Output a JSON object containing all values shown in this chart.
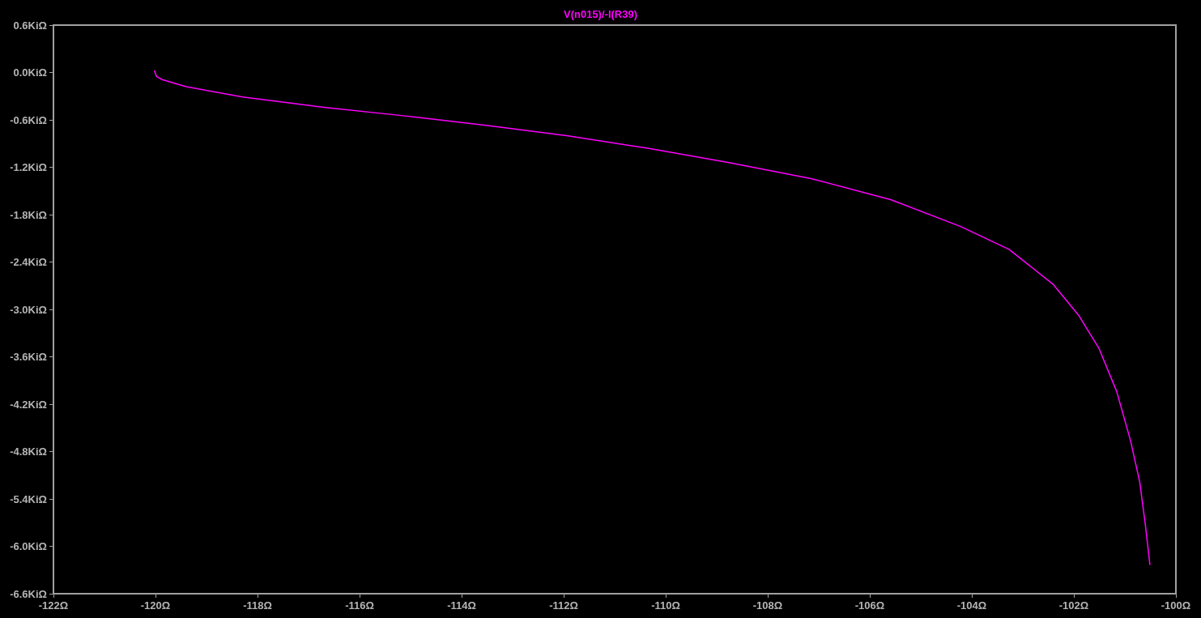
{
  "chart_data": {
    "type": "line",
    "title": "V(n015)/-I(R39)",
    "x": [
      -120.02,
      -119.98,
      -119.87,
      -119.4,
      -118.29,
      -116.7,
      -115.11,
      -113.52,
      -111.94,
      -110.35,
      -108.76,
      -107.17,
      -105.59,
      -104.22,
      -103.27,
      -102.41,
      -101.9,
      -101.51,
      -101.16,
      -100.89,
      -100.71,
      -100.6,
      -100.51
    ],
    "series": [
      {
        "color": "#ff00ff",
        "values": [
          0.02,
          -0.05,
          -0.09,
          -0.18,
          -0.31,
          -0.44,
          -0.55,
          -0.67,
          -0.8,
          -0.96,
          -1.14,
          -1.34,
          -1.61,
          -1.95,
          -2.24,
          -2.68,
          -3.08,
          -3.49,
          -4.04,
          -4.66,
          -5.18,
          -5.72,
          -6.23
        ]
      }
    ],
    "xlim": [
      -122,
      -100
    ],
    "xticks": [
      {
        "value": -122,
        "label": "-122Ω"
      },
      {
        "value": -120,
        "label": "-120Ω"
      },
      {
        "value": -118,
        "label": "-118Ω"
      },
      {
        "value": -116,
        "label": "-116Ω"
      },
      {
        "value": -114,
        "label": "-114Ω"
      },
      {
        "value": -112,
        "label": "-112Ω"
      },
      {
        "value": -110,
        "label": "-110Ω"
      },
      {
        "value": -108,
        "label": "-108Ω"
      },
      {
        "value": -106,
        "label": "-106Ω"
      },
      {
        "value": -104,
        "label": "-104Ω"
      },
      {
        "value": -102,
        "label": "-102Ω"
      },
      {
        "value": -100,
        "label": "-100Ω"
      }
    ],
    "ylim": [
      -6.6,
      0.6
    ],
    "yticks": [
      {
        "value": 0.6,
        "label": "0.6KiΩ"
      },
      {
        "value": 0,
        "label": "0.0KiΩ"
      },
      {
        "value": -0.6,
        "label": "-0.6KiΩ"
      },
      {
        "value": -1.2,
        "label": "-1.2KiΩ"
      },
      {
        "value": -1.8,
        "label": "-1.8KiΩ"
      },
      {
        "value": -2.4,
        "label": "-2.4KiΩ"
      },
      {
        "value": -3,
        "label": "-3.0KiΩ"
      },
      {
        "value": -3.6,
        "label": "-3.6KiΩ"
      },
      {
        "value": -4.2,
        "label": "-4.2KiΩ"
      },
      {
        "value": -4.8,
        "label": "-4.8KiΩ"
      },
      {
        "value": -5.4,
        "label": "-5.4KiΩ"
      },
      {
        "value": -6,
        "label": "-6.0KiΩ"
      },
      {
        "value": -6.6,
        "label": "-6.6KiΩ"
      }
    ],
    "grid": false,
    "marker": "none",
    "line_style": "solid"
  }
}
